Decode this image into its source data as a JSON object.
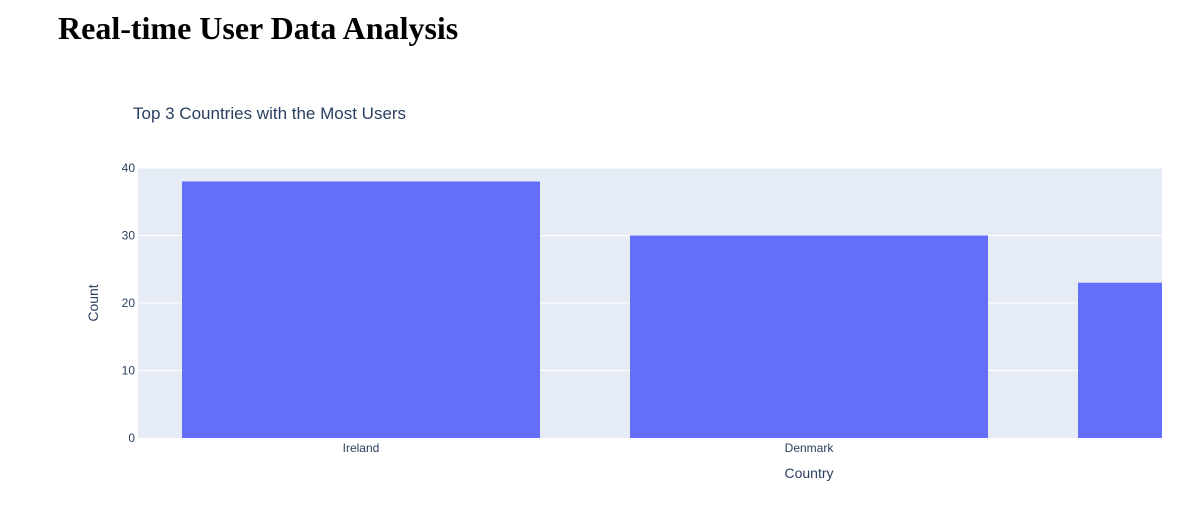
{
  "page": {
    "title": "Real-time User Data Analysis"
  },
  "chart_data": {
    "type": "bar",
    "title": "Top 3 Countries with the Most Users",
    "xlabel": "Country",
    "ylabel": "Count",
    "categories": [
      "Ireland",
      "Denmark",
      ""
    ],
    "values": [
      38,
      30,
      23
    ],
    "ylim": [
      0,
      40
    ],
    "yticks": [
      0,
      10,
      20,
      30,
      40
    ],
    "grid": true,
    "legend": "none",
    "colors": {
      "bar": "#636efa",
      "plot_bg": "#e5ecf6",
      "grid": "#ffffff",
      "text": "#2a3f5f"
    }
  }
}
